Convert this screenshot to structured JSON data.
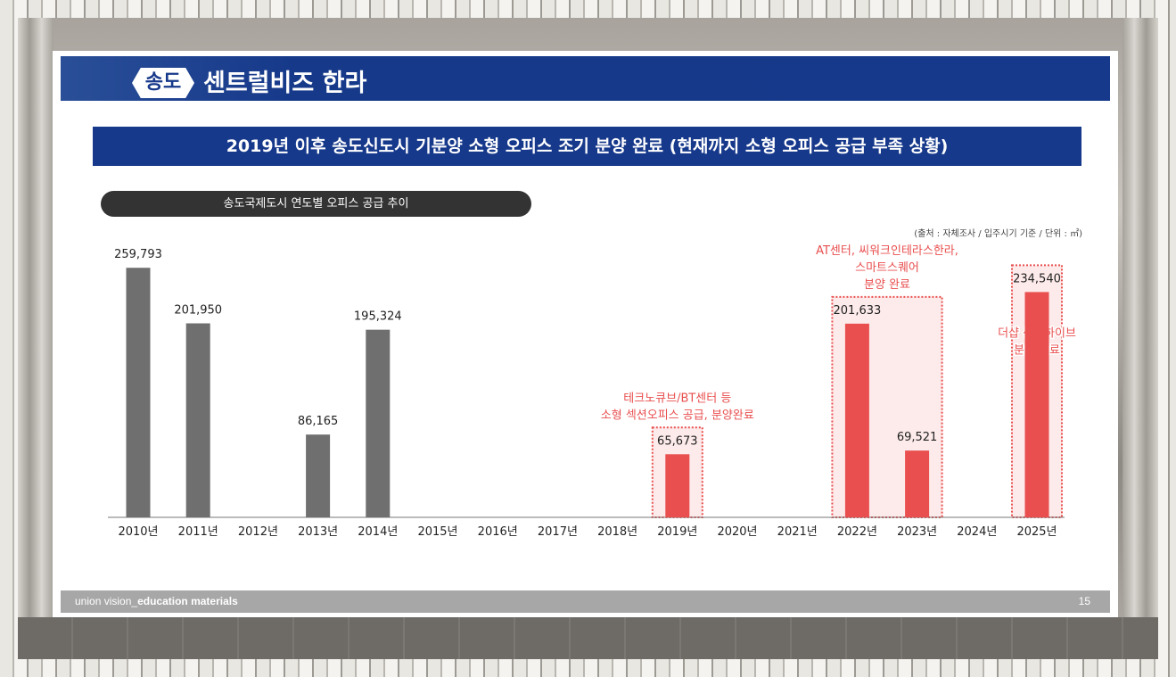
{
  "slide": {
    "badge": "송도",
    "brand": "센트럴비즈 한라",
    "headline": "2019년 이후 송도신도시 기분양 소형 오피스 조기 분양 완료 (현재까지 소형 오피스 공급 부족 상황)",
    "chart_title": "송도국제도시 연도별 오피스 공급 추이",
    "source": "(출처 : 자체조사 / 입주시기 기준 / 단위 : ㎡)",
    "footer_prefix": "union vision_",
    "footer_bold": "education materials",
    "page_number": "15"
  },
  "colors": {
    "navy": "#17398b",
    "bar_gray": "#6f6f6f",
    "bar_red": "#e94f4f",
    "highlight_fill": "#fdeaea",
    "highlight_border": "#e94f4f"
  },
  "chart_data": {
    "type": "bar",
    "categories": [
      "2010년",
      "2011년",
      "2012년",
      "2013년",
      "2014년",
      "2015년",
      "2016년",
      "2017년",
      "2018년",
      "2019년",
      "2020년",
      "2021년",
      "2022년",
      "2023년",
      "2024년",
      "2025년"
    ],
    "values": [
      259793,
      201950,
      null,
      86165,
      195324,
      null,
      null,
      null,
      null,
      65673,
      null,
      null,
      201633,
      69521,
      null,
      234540
    ],
    "value_labels": [
      "259,793",
      "201,950",
      "",
      "86,165",
      "195,324",
      "",
      "",
      "",
      "",
      "65,673",
      "",
      "",
      "201,633",
      "69,521",
      "",
      "234,540"
    ],
    "highlighted": [
      false,
      false,
      false,
      false,
      false,
      false,
      false,
      false,
      false,
      true,
      false,
      false,
      true,
      true,
      false,
      true
    ],
    "ylim": [
      0,
      260000
    ],
    "annotations": [
      {
        "lines": [
          "테크노큐브/BT센터 등",
          "소형 섹션오피스 공급, 분양완료"
        ],
        "category_indices": [
          9
        ]
      },
      {
        "lines": [
          "AT센터, 씨워크인테라스한라,",
          "스마트스퀘어",
          "분양 완료"
        ],
        "category_indices": [
          12,
          13
        ]
      },
      {
        "lines": [
          "더샵 센텀하이브",
          "분양 완료"
        ],
        "category_indices": [
          15
        ]
      }
    ]
  }
}
